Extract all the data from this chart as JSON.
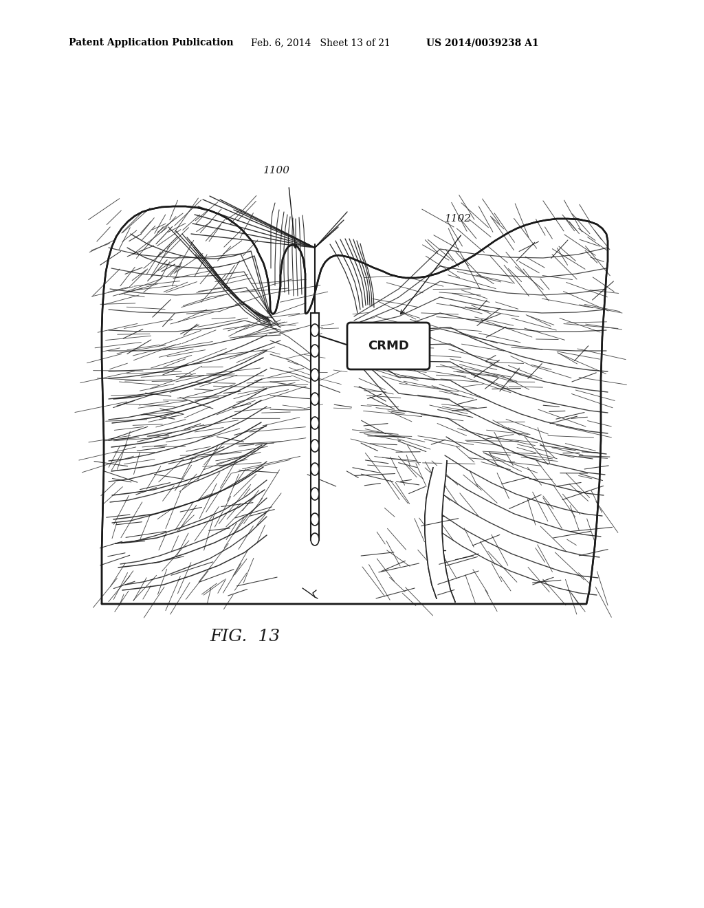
{
  "background_color": "#ffffff",
  "header_left": "Patent Application Publication",
  "header_mid": "Feb. 6, 2014   Sheet 13 of 21",
  "header_right": "US 2014/0039238 A1",
  "label_1100": "1100",
  "label_1102": "1102",
  "crmd_label": "CRMD",
  "fig_label": "FIG.  13",
  "header_fontsize": 10,
  "label_fontsize": 11,
  "fig_label_fontsize": 18
}
